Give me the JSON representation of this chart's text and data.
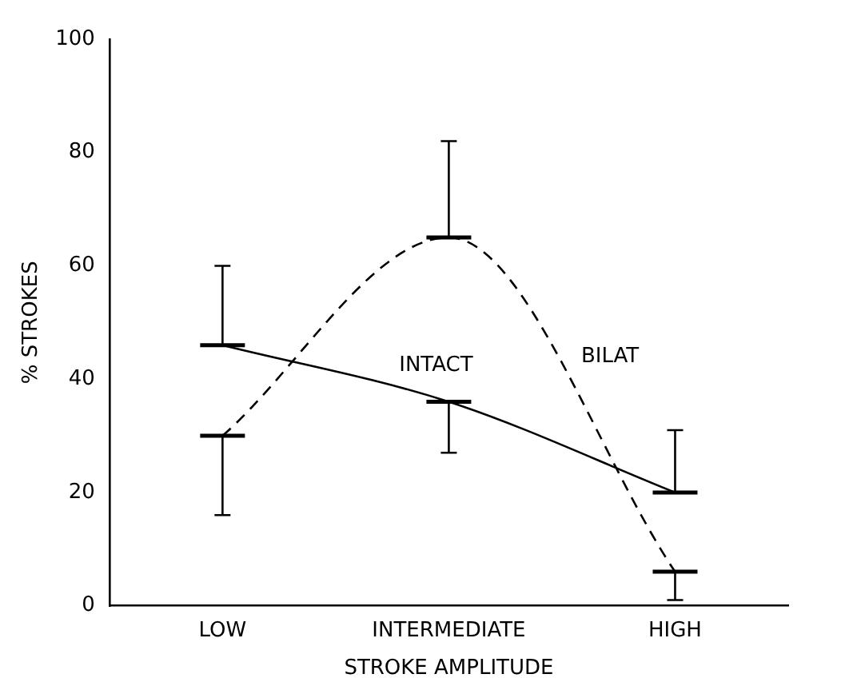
{
  "chart_data": {
    "type": "line",
    "xlabel": "STROKE AMPLITUDE",
    "ylabel": "% STROKES",
    "categories": [
      "LOW",
      "INTERMEDIATE",
      "HIGH"
    ],
    "series": [
      {
        "name": "INTACT",
        "color": "#000000",
        "values": [
          46,
          36,
          20
        ],
        "line_style": "solid",
        "errors": [
          [
            46,
            60
          ],
          [
            27,
            36
          ],
          [
            20,
            31
          ]
        ]
      },
      {
        "name": "BILAT",
        "color": "#000000",
        "values": [
          30,
          65,
          6
        ],
        "line_style": "dashed",
        "errors": [
          [
            16,
            30
          ],
          [
            65,
            82
          ],
          [
            1,
            6
          ]
        ]
      }
    ],
    "ylim": [
      0,
      100
    ],
    "yticks": [
      0,
      20,
      40,
      60,
      80,
      100
    ],
    "grid": false,
    "legend": false
  }
}
